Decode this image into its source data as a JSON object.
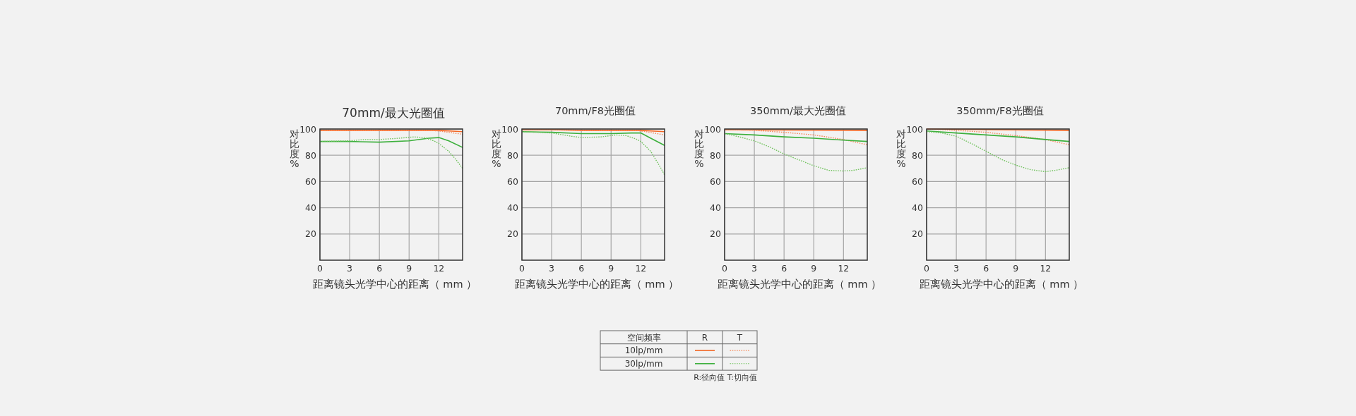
{
  "chart_data": [
    {
      "type": "line",
      "title": "70mm/最大光圈值",
      "xlabel": "距离镜头光学中心的距离（ mm ）",
      "ylabel": "对比度%",
      "xlim": [
        0,
        14.4
      ],
      "xticks": [
        0,
        3,
        6,
        9,
        12
      ],
      "ylim": [
        0,
        100
      ],
      "yticks": [
        20,
        40,
        60,
        80,
        100
      ],
      "grid": true,
      "legend": "bottom",
      "legend_title": "空间频率",
      "annotations": [
        "R",
        "T",
        "R:径向值  T:切向值"
      ],
      "series": [
        {
          "name": "10lp/mm",
          "color": "#f26522",
          "line_style": "solid",
          "x": [
            0,
            3,
            6,
            9,
            12,
            14.4
          ],
          "values": [
            99,
            99,
            99,
            99,
            99,
            98
          ]
        },
        {
          "color": "#f58a5c",
          "line_style": "dotted",
          "x": [
            0,
            3,
            6,
            9,
            11,
            12,
            13,
            14.4
          ],
          "values": [
            99,
            99,
            99,
            99,
            99,
            98.5,
            97.5,
            96
          ]
        },
        {
          "name": "30lp/mm",
          "color": "#3db03d",
          "line_style": "solid",
          "x": [
            0,
            3,
            6,
            9,
            11,
            12,
            13,
            14.4
          ],
          "values": [
            90.5,
            90.5,
            90,
            91,
            93,
            93.5,
            91,
            86
          ]
        },
        {
          "color": "#72c35f",
          "line_style": "dotted",
          "x": [
            0,
            3,
            4.5,
            6,
            8,
            9.5,
            10.5,
            11.5,
            12,
            13,
            13.7,
            14.4
          ],
          "values": [
            90.5,
            91,
            92,
            92,
            93,
            94,
            93.5,
            91,
            89,
            83,
            77,
            70
          ]
        }
      ]
    },
    {
      "type": "line",
      "title": "70mm/F8光圈值",
      "xlabel": "距离镜头光学中心的距离（ mm ）",
      "ylabel": "对比度%",
      "xlim": [
        0,
        14.4
      ],
      "xticks": [
        0,
        3,
        6,
        9,
        12
      ],
      "ylim": [
        0,
        100
      ],
      "yticks": [
        20,
        40,
        60,
        80,
        100
      ],
      "grid": true,
      "series": [
        {
          "color": "#f26522",
          "line_style": "solid",
          "x": [
            0,
            3,
            6,
            9,
            12,
            14.4
          ],
          "values": [
            99.5,
            99.5,
            99,
            99,
            99,
            98
          ]
        },
        {
          "color": "#f58a5c",
          "line_style": "dotted",
          "x": [
            0,
            3,
            6,
            9,
            11.5,
            12.5,
            14.4
          ],
          "values": [
            99.5,
            99.5,
            99,
            99,
            99,
            98,
            95.5
          ]
        },
        {
          "color": "#3db03d",
          "line_style": "solid",
          "x": [
            0,
            3,
            6,
            9,
            11,
            12,
            13,
            14.4
          ],
          "values": [
            98,
            97.5,
            96.5,
            96.5,
            97,
            97,
            93,
            87.5
          ]
        },
        {
          "color": "#72c35f",
          "line_style": "dotted",
          "x": [
            0,
            3,
            5,
            6,
            8,
            9.5,
            10.5,
            11.5,
            12,
            13,
            14,
            14.4
          ],
          "values": [
            98,
            97,
            94.5,
            93.5,
            94,
            95.5,
            95,
            92.5,
            90.5,
            83,
            70.5,
            65
          ]
        }
      ]
    },
    {
      "type": "line",
      "title": "350mm/最大光圈值",
      "xlabel": "距离镜头光学中心的距离（ mm ）",
      "ylabel": "对比度%",
      "xlim": [
        0,
        14.4
      ],
      "xticks": [
        0,
        3,
        6,
        9,
        12
      ],
      "ylim": [
        0,
        100
      ],
      "yticks": [
        20,
        40,
        60,
        80,
        100
      ],
      "grid": true,
      "series": [
        {
          "color": "#f26522",
          "line_style": "solid",
          "x": [
            0,
            14.4
          ],
          "values": [
            99.5,
            99
          ]
        },
        {
          "color": "#f58a5c",
          "line_style": "dotted",
          "x": [
            0,
            3,
            6,
            9,
            12,
            14.4
          ],
          "values": [
            99.5,
            99,
            97.5,
            95.5,
            92,
            88
          ]
        },
        {
          "color": "#3db03d",
          "line_style": "solid",
          "x": [
            0,
            3,
            6,
            9,
            12,
            14.4
          ],
          "values": [
            96.5,
            95.5,
            94,
            93,
            91.5,
            90.5
          ]
        },
        {
          "color": "#72c35f",
          "line_style": "dotted",
          "x": [
            0,
            1.5,
            3,
            4.5,
            6,
            7.5,
            9,
            10.5,
            12,
            13,
            14.4
          ],
          "values": [
            96.5,
            94,
            91,
            86.5,
            81,
            76.5,
            72,
            68.5,
            68,
            68.5,
            70.5
          ]
        }
      ]
    },
    {
      "type": "line",
      "title": "350mm/F8光圈值",
      "xlabel": "距离镜头光学中心的距离（ mm ）",
      "ylabel": "对比度%",
      "xlim": [
        0,
        14.4
      ],
      "xticks": [
        0,
        3,
        6,
        9,
        12
      ],
      "ylim": [
        0,
        100
      ],
      "yticks": [
        20,
        40,
        60,
        80,
        100
      ],
      "grid": true,
      "series": [
        {
          "color": "#f26522",
          "line_style": "solid",
          "x": [
            0,
            14.4
          ],
          "values": [
            100,
            99
          ]
        },
        {
          "color": "#f58a5c",
          "line_style": "dotted",
          "x": [
            0,
            3,
            6,
            9,
            12,
            14.4
          ],
          "values": [
            100,
            99,
            97.5,
            95,
            92,
            88
          ]
        },
        {
          "color": "#3db03d",
          "line_style": "solid",
          "x": [
            0,
            3,
            6,
            9,
            12,
            14.4
          ],
          "values": [
            98.5,
            97,
            95.5,
            94,
            92,
            90.5
          ]
        },
        {
          "color": "#72c35f",
          "line_style": "dotted",
          "x": [
            0,
            1.5,
            3,
            4.5,
            6,
            7.5,
            9,
            10.5,
            12,
            13,
            14.4
          ],
          "values": [
            98,
            97,
            94.5,
            89,
            83,
            77,
            72.5,
            69,
            67.5,
            68.5,
            70.5
          ]
        }
      ]
    }
  ]
}
